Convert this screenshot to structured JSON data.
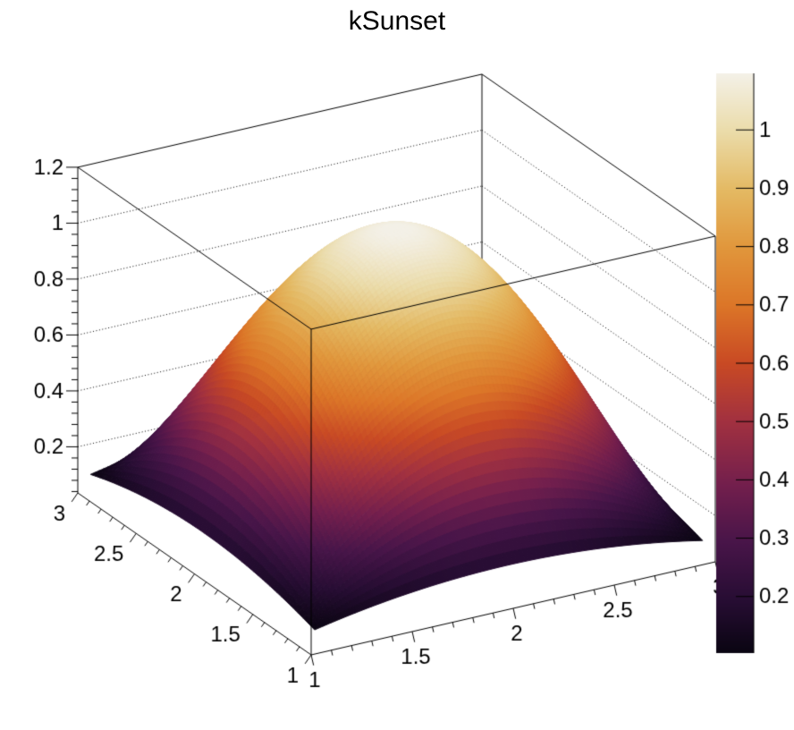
{
  "colors": {
    "background": "#ffffff",
    "line": "#000000",
    "text": "#000000"
  },
  "chart_data": {
    "type": "surface3d",
    "title": "kSunset",
    "palette_name": "kSunset",
    "z_formula_js": "0.1+(1-(x-2)*(x-2))*(1-(y-2)*(y-2))",
    "surface_domain": [
      1.04,
      2.96
    ],
    "surface_step": 0.02,
    "x": {
      "min": 1,
      "max": 3,
      "tick_values": [
        1,
        1.5,
        2,
        2.5,
        3
      ],
      "tick_labels": [
        "1",
        "1.5",
        "2",
        "2.5",
        "3"
      ],
      "minor_step": 0.1
    },
    "y": {
      "min": 1,
      "max": 3,
      "tick_values": [
        1,
        1.5,
        2,
        2.5,
        3
      ],
      "tick_labels": [
        "1",
        "1.5",
        "2",
        "2.5",
        "3"
      ],
      "minor_step": 0.1
    },
    "z": {
      "min": 0.035,
      "max": 1.2,
      "tick_values": [
        0.2,
        0.4,
        0.6,
        0.8,
        1.0,
        1.2
      ],
      "tick_labels": [
        "0.2",
        "0.4",
        "0.6",
        "0.8",
        "1",
        "1.2"
      ],
      "minor_step": 0.04,
      "grid_values": [
        0.2,
        0.4,
        0.6,
        0.8,
        1.0
      ],
      "grid_on": true
    },
    "color_bar": {
      "min": 0.103,
      "max": 1.097,
      "tick_values": [
        0.2,
        0.3,
        0.4,
        0.5,
        0.6,
        0.7,
        0.8,
        0.9,
        1.0
      ],
      "tick_labels": [
        "0.2",
        "0.3",
        "0.4",
        "0.5",
        "0.6",
        "0.7",
        "0.8",
        "0.9",
        "1"
      ],
      "gradient_stops": [
        {
          "t": 0.0,
          "color": "#0a0512"
        },
        {
          "t": 0.09,
          "color": "#270d33"
        },
        {
          "t": 0.19,
          "color": "#481549"
        },
        {
          "t": 0.29,
          "color": "#731f4d"
        },
        {
          "t": 0.4,
          "color": "#a23140"
        },
        {
          "t": 0.5,
          "color": "#c94a24"
        },
        {
          "t": 0.6,
          "color": "#dc7628"
        },
        {
          "t": 0.7,
          "color": "#e1973c"
        },
        {
          "t": 0.8,
          "color": "#e4ba64"
        },
        {
          "t": 0.9,
          "color": "#ebdcaa"
        },
        {
          "t": 1.0,
          "color": "#f4f1e8"
        }
      ]
    },
    "z_matrix_sample": {
      "x_values": [
        1.0,
        1.2,
        1.4,
        1.6,
        1.8,
        2.0,
        2.2,
        2.4,
        2.6,
        2.8,
        3.0
      ],
      "y_values": [
        1.0,
        1.2,
        1.4,
        1.6,
        1.8,
        2.0,
        2.2,
        2.4,
        2.6,
        2.8,
        3.0
      ],
      "z": [
        [
          0.1,
          0.1,
          0.1,
          0.1,
          0.1,
          0.1,
          0.1,
          0.1,
          0.1,
          0.1,
          0.1
        ],
        [
          0.1,
          0.2296,
          0.3304,
          0.4024,
          0.4456,
          0.46,
          0.4456,
          0.4024,
          0.3304,
          0.2296,
          0.1
        ],
        [
          0.1,
          0.3304,
          0.5096,
          0.6376,
          0.7144,
          0.74,
          0.7144,
          0.6376,
          0.5096,
          0.3304,
          0.1
        ],
        [
          0.1,
          0.4024,
          0.6376,
          0.8056,
          0.9064,
          0.94,
          0.9064,
          0.8056,
          0.6376,
          0.4024,
          0.1
        ],
        [
          0.1,
          0.4456,
          0.7144,
          0.9064,
          1.0216,
          1.06,
          1.0216,
          0.9064,
          0.7144,
          0.4456,
          0.1
        ],
        [
          0.1,
          0.46,
          0.74,
          0.94,
          1.06,
          1.1,
          1.06,
          0.94,
          0.74,
          0.46,
          0.1
        ],
        [
          0.1,
          0.4456,
          0.7144,
          0.9064,
          1.0216,
          1.06,
          1.0216,
          0.9064,
          0.7144,
          0.4456,
          0.1
        ],
        [
          0.1,
          0.4024,
          0.6376,
          0.8056,
          0.9064,
          0.94,
          0.9064,
          0.8056,
          0.6376,
          0.4024,
          0.1
        ],
        [
          0.1,
          0.3304,
          0.5096,
          0.6376,
          0.7144,
          0.74,
          0.7144,
          0.6376,
          0.5096,
          0.3304,
          0.1
        ],
        [
          0.1,
          0.2296,
          0.3304,
          0.4024,
          0.4456,
          0.46,
          0.4456,
          0.4024,
          0.3304,
          0.2296,
          0.1
        ],
        [
          0.1,
          0.1,
          0.1,
          0.1,
          0.1,
          0.1,
          0.1,
          0.1,
          0.1,
          0.1,
          0.1
        ]
      ]
    }
  }
}
